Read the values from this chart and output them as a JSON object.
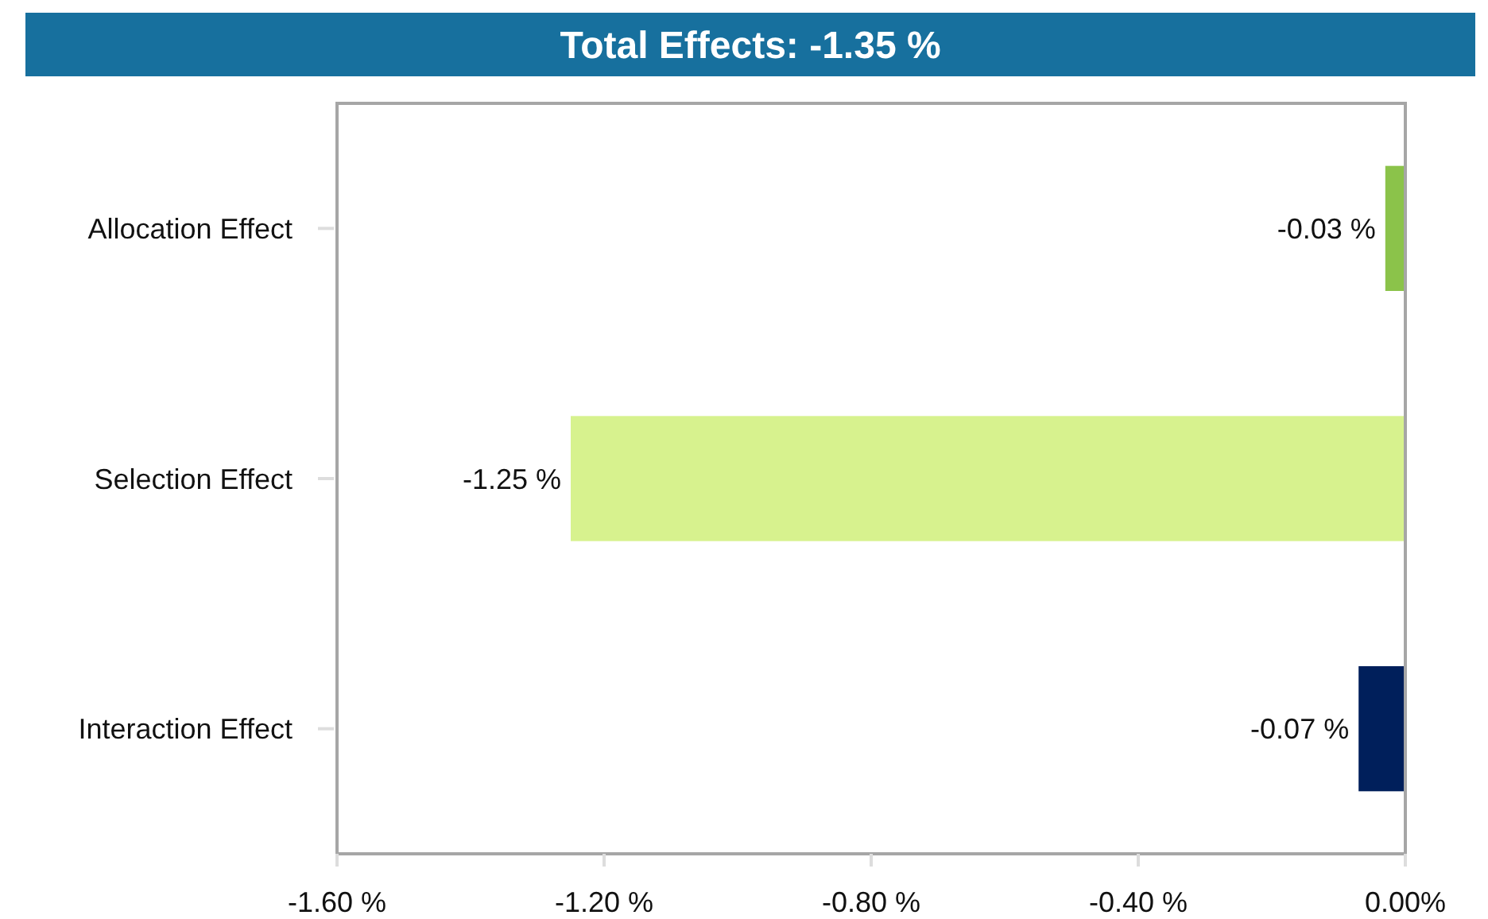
{
  "chart_data": {
    "type": "bar",
    "orientation": "horizontal",
    "title": "Total Effects: -1.35 %",
    "categories": [
      "Allocation Effect",
      "Selection Effect",
      "Interaction Effect"
    ],
    "values": [
      -0.03,
      -1.25,
      -0.07
    ],
    "colors": [
      "#8bc34a",
      "#d7f28e",
      "#001f5b"
    ],
    "value_labels": [
      "-0.03 %",
      "-1.25 %",
      "-0.07 %"
    ],
    "xlim": [
      -1.6,
      0
    ],
    "xticks": [
      {
        "value": -1.6,
        "label": "-1.60 %"
      },
      {
        "value": -1.2,
        "label": "-1.20 %"
      },
      {
        "value": -0.8,
        "label": "-0.80 %"
      },
      {
        "value": -0.4,
        "label": "-0.40 %"
      },
      {
        "value": 0,
        "label": "0.00%"
      }
    ],
    "grid": false
  }
}
